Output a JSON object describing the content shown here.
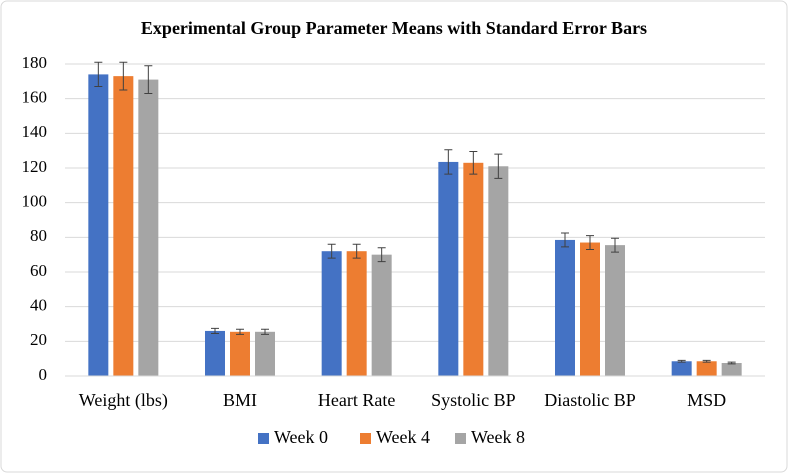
{
  "chart_data": {
    "type": "bar",
    "title": "Experimental Group Parameter Means with Standard Error Bars",
    "categories": [
      "Weight (lbs)",
      "BMI",
      "Heart Rate",
      "Systolic BP",
      "Diastolic BP",
      "MSD"
    ],
    "series": [
      {
        "name": "Week 0",
        "color": "#4472c4",
        "values": [
          174,
          26,
          72,
          123.5,
          78.5,
          8.5
        ],
        "errors": [
          7,
          1.5,
          4,
          7,
          4,
          0.5
        ]
      },
      {
        "name": "Week 4",
        "color": "#ed7d31",
        "values": [
          173,
          25.5,
          72,
          123,
          77,
          8.5
        ],
        "errors": [
          8,
          1.5,
          4,
          6.5,
          4,
          0.5
        ]
      },
      {
        "name": "Week 8",
        "color": "#a5a5a5",
        "values": [
          171,
          25.5,
          70,
          121,
          75.5,
          7.5
        ],
        "errors": [
          8,
          1.5,
          4,
          7,
          4,
          0.5
        ]
      }
    ],
    "ylim": [
      0,
      180
    ],
    "yticks": [
      0,
      20,
      40,
      60,
      80,
      100,
      120,
      140,
      160,
      180
    ],
    "grid": true
  }
}
